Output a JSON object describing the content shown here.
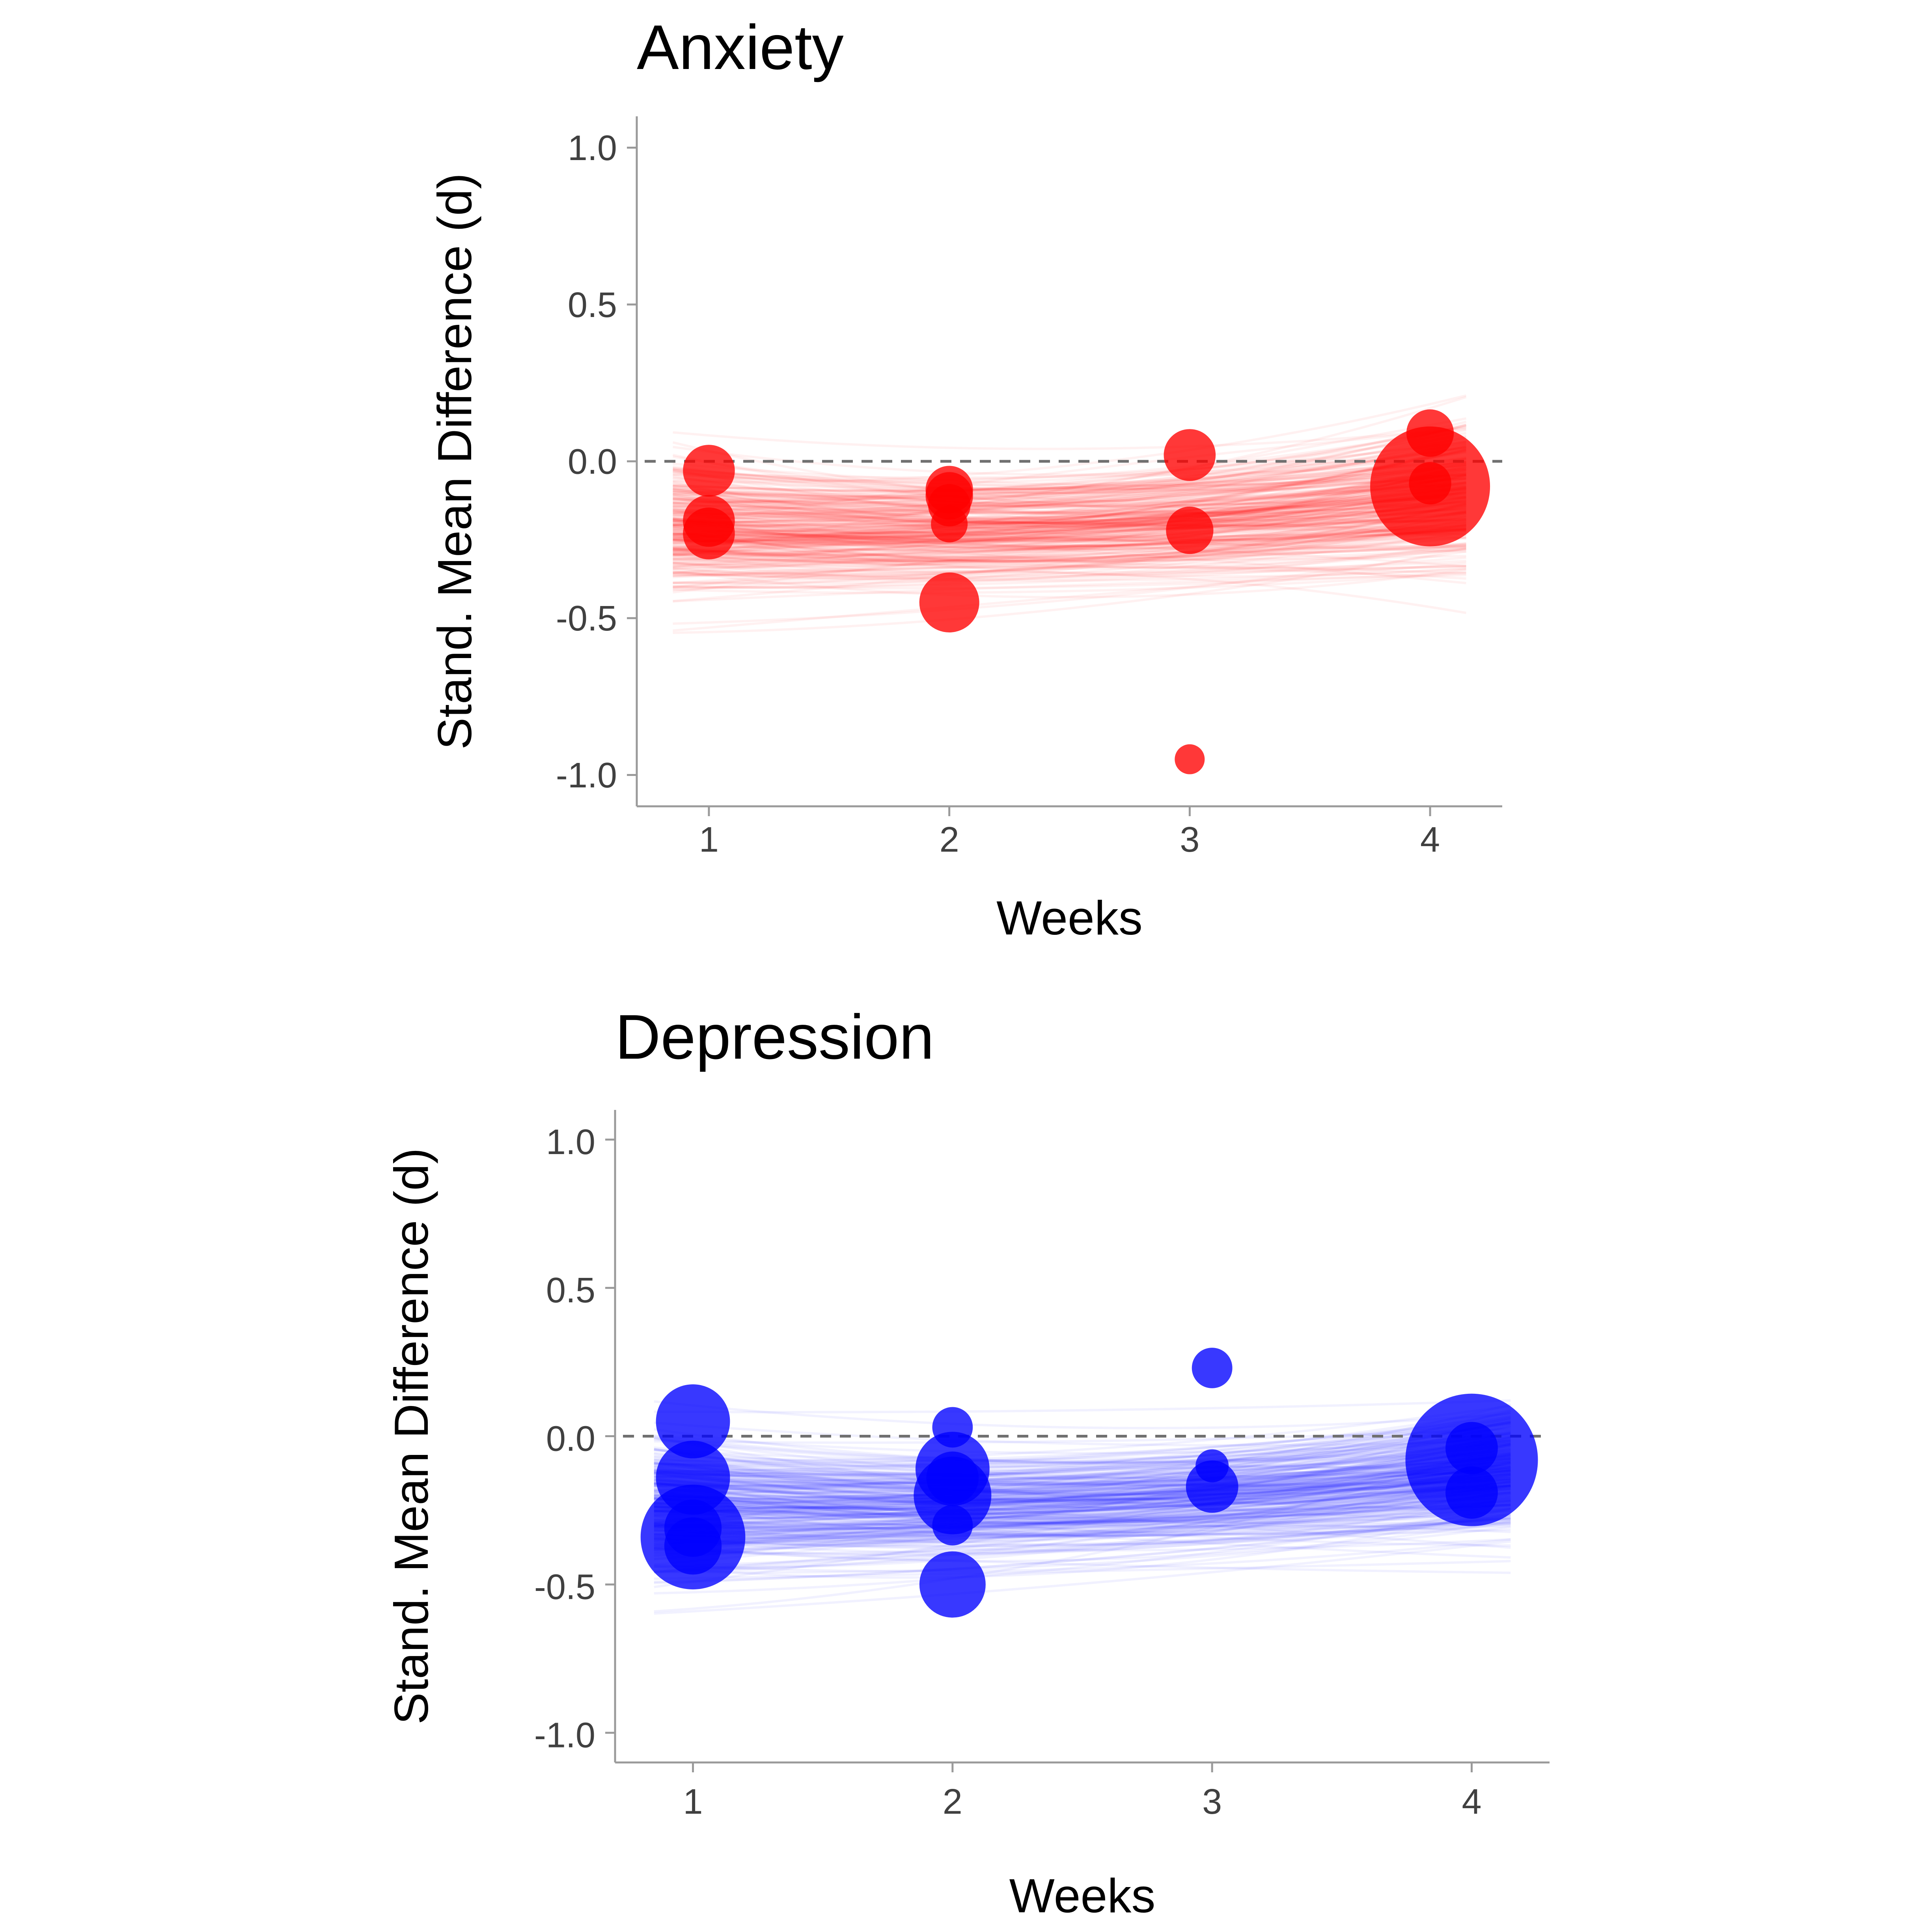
{
  "chart_data": [
    {
      "type": "scatter",
      "title": "Anxiety",
      "xlabel": "Weeks",
      "ylabel": "Stand. Mean Difference (d)",
      "xlim": [
        0.7,
        4.3
      ],
      "ylim": [
        -1.1,
        1.1
      ],
      "x_ticks": [
        "1",
        "2",
        "3",
        "4"
      ],
      "y_ticks": [
        "1.0",
        "0.5",
        "0.0",
        "-0.5",
        "-1.0"
      ],
      "reference_line": 0.0,
      "color": "#ff0000",
      "posterior_lines": {
        "count": 300,
        "x_range": [
          0.85,
          4.15
        ],
        "mean_intercept": -0.21,
        "mean_trend": 0.03,
        "color": "#ff0000"
      },
      "points": [
        {
          "x": 1,
          "y": -0.03,
          "weight": 3
        },
        {
          "x": 1,
          "y": -0.19,
          "weight": 3
        },
        {
          "x": 1,
          "y": -0.23,
          "weight": 3
        },
        {
          "x": 2,
          "y": -0.09,
          "weight": 2.5
        },
        {
          "x": 2,
          "y": -0.11,
          "weight": 2.5
        },
        {
          "x": 2,
          "y": -0.14,
          "weight": 2
        },
        {
          "x": 2,
          "y": -0.2,
          "weight": 1.5
        },
        {
          "x": 2,
          "y": -0.45,
          "weight": 4
        },
        {
          "x": 3,
          "y": 0.02,
          "weight": 3
        },
        {
          "x": 3,
          "y": -0.22,
          "weight": 2.5
        },
        {
          "x": 3,
          "y": -0.95,
          "weight": 1
        },
        {
          "x": 4,
          "y": 0.09,
          "weight": 2.5
        },
        {
          "x": 4,
          "y": -0.07,
          "weight": 2
        },
        {
          "x": 4,
          "y": -0.08,
          "weight": 16
        }
      ]
    },
    {
      "type": "scatter",
      "title": "Depression",
      "xlabel": "Weeks",
      "ylabel": "Stand. Mean Difference (d)",
      "xlim": [
        0.7,
        4.3
      ],
      "ylim": [
        -1.1,
        1.1
      ],
      "x_ticks": [
        "1",
        "2",
        "3",
        "4"
      ],
      "y_ticks": [
        "1.0",
        "0.5",
        "0.0",
        "-0.5",
        "-1.0"
      ],
      "reference_line": 0.0,
      "color": "#0000ff",
      "posterior_lines": {
        "count": 300,
        "x_range": [
          0.85,
          4.15
        ],
        "mean_intercept": -0.23,
        "mean_trend": 0.03,
        "color": "#0000ff"
      },
      "points": [
        {
          "x": 1,
          "y": 0.05,
          "weight": 5
        },
        {
          "x": 1,
          "y": -0.14,
          "weight": 5
        },
        {
          "x": 1,
          "y": -0.31,
          "weight": 3
        },
        {
          "x": 1,
          "y": -0.34,
          "weight": 10
        },
        {
          "x": 1,
          "y": -0.37,
          "weight": 3
        },
        {
          "x": 2,
          "y": 0.03,
          "weight": 1.5
        },
        {
          "x": 2,
          "y": -0.11,
          "weight": 5
        },
        {
          "x": 2,
          "y": -0.14,
          "weight": 2.5
        },
        {
          "x": 2,
          "y": -0.2,
          "weight": 5.5
        },
        {
          "x": 2,
          "y": -0.3,
          "weight": 1.5
        },
        {
          "x": 2,
          "y": -0.5,
          "weight": 4
        },
        {
          "x": 3,
          "y": 0.23,
          "weight": 1.5
        },
        {
          "x": 3,
          "y": -0.1,
          "weight": 1
        },
        {
          "x": 3,
          "y": -0.17,
          "weight": 2.5
        },
        {
          "x": 4,
          "y": -0.04,
          "weight": 2.5
        },
        {
          "x": 4,
          "y": -0.08,
          "weight": 16
        },
        {
          "x": 4,
          "y": -0.19,
          "weight": 2.5
        }
      ]
    }
  ]
}
